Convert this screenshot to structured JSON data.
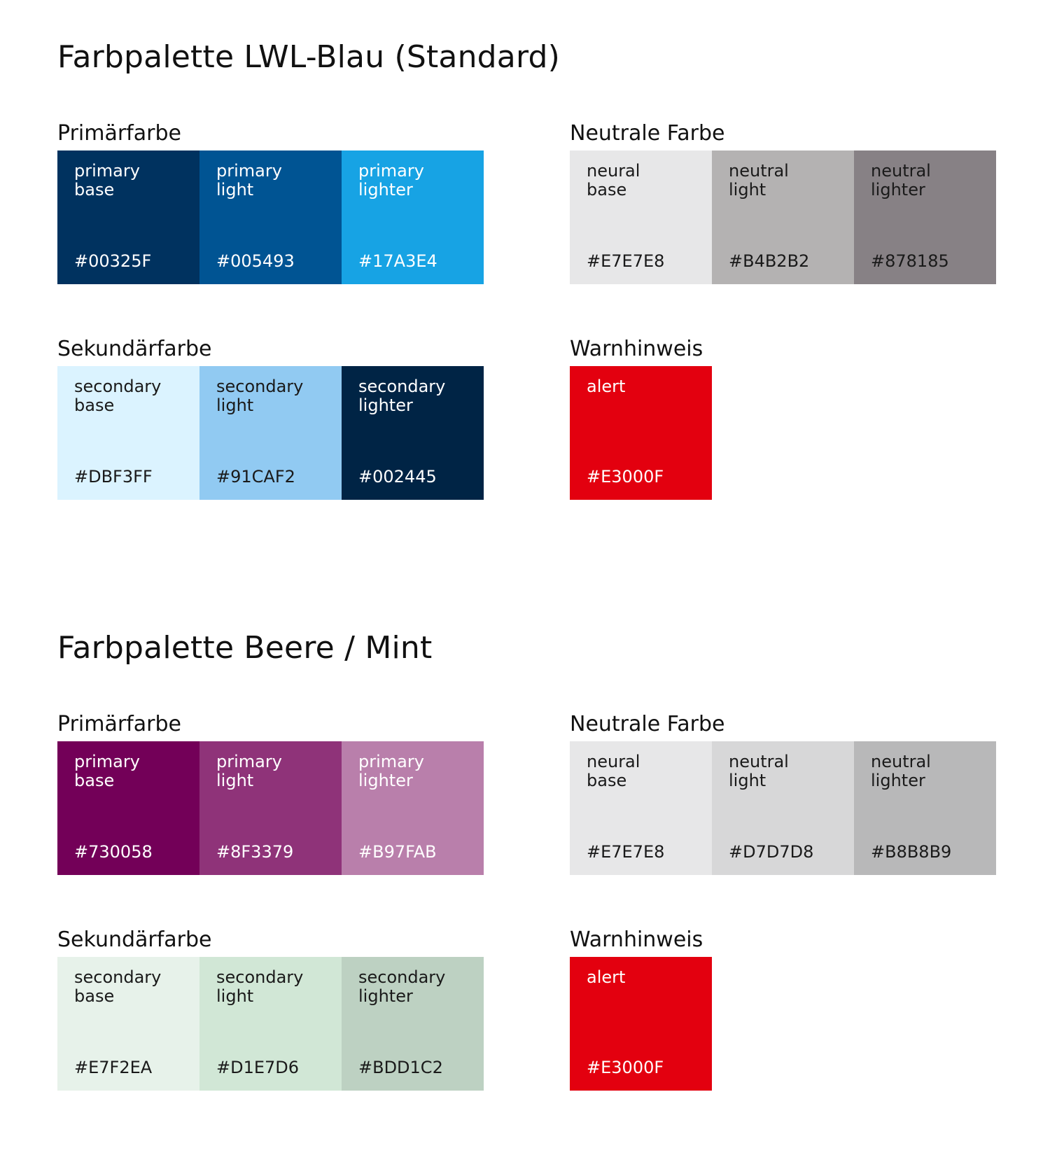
{
  "palettes": [
    {
      "title": "Farbpalette LWL-Blau (Standard)",
      "groups": [
        {
          "title": "Primärfarbe",
          "swatches": [
            {
              "name": "primary\nbase",
              "hex": "#00325F",
              "color": "#00325F",
              "text_color": "#FFFFFF"
            },
            {
              "name": "primary\nlight",
              "hex": "#005493",
              "color": "#005493",
              "text_color": "#FFFFFF"
            },
            {
              "name": "primary\nlighter",
              "hex": "#17A3E4",
              "color": "#17A3E4",
              "text_color": "#FFFFFF"
            }
          ]
        },
        {
          "title": "Neutrale Farbe",
          "swatches": [
            {
              "name": "neural\nbase",
              "hex": "#E7E7E8",
              "color": "#E7E7E8",
              "text_color": "#1A1A1A"
            },
            {
              "name": "neutral\nlight",
              "hex": "#B4B2B2",
              "color": "#B4B2B2",
              "text_color": "#1A1A1A"
            },
            {
              "name": "neutral\nlighter",
              "hex": "#878185",
              "color": "#878185",
              "text_color": "#1A1A1A"
            }
          ]
        },
        {
          "title": "Sekundärfarbe",
          "swatches": [
            {
              "name": "secondary\nbase",
              "hex": "#DBF3FF",
              "color": "#DBF3FF",
              "text_color": "#1A1A1A"
            },
            {
              "name": "secondary\nlight",
              "hex": "#91CAF2",
              "color": "#91CAF2",
              "text_color": "#1A1A1A"
            },
            {
              "name": "secondary\nlighter",
              "hex": "#002445",
              "color": "#002445",
              "text_color": "#FFFFFF"
            }
          ]
        },
        {
          "title": "Warnhinweis",
          "swatches": [
            {
              "name": "alert",
              "hex": "#E3000F",
              "color": "#E3000F",
              "text_color": "#FFFFFF"
            }
          ]
        }
      ]
    },
    {
      "title": "Farbpalette Beere / Mint",
      "groups": [
        {
          "title": "Primärfarbe",
          "swatches": [
            {
              "name": "primary\nbase",
              "hex": "#730058",
              "color": "#730058",
              "text_color": "#FFFFFF"
            },
            {
              "name": "primary\nlight",
              "hex": "#8F3379",
              "color": "#8F3379",
              "text_color": "#FFFFFF"
            },
            {
              "name": "primary\nlighter",
              "hex": "#B97FAB",
              "color": "#B97FAB",
              "text_color": "#FFFFFF"
            }
          ]
        },
        {
          "title": "Neutrale Farbe",
          "swatches": [
            {
              "name": "neural\nbase",
              "hex": "#E7E7E8",
              "color": "#E7E7E8",
              "text_color": "#1A1A1A"
            },
            {
              "name": "neutral\nlight",
              "hex": "#D7D7D8",
              "color": "#D7D7D8",
              "text_color": "#1A1A1A"
            },
            {
              "name": "neutral\nlighter",
              "hex": "#B8B8B9",
              "color": "#B8B8B9",
              "text_color": "#1A1A1A"
            }
          ]
        },
        {
          "title": "Sekundärfarbe",
          "swatches": [
            {
              "name": "secondary\nbase",
              "hex": "#E7F2EA",
              "color": "#E7F2EA",
              "text_color": "#1A1A1A"
            },
            {
              "name": "secondary\nlight",
              "hex": "#D1E7D6",
              "color": "#D1E7D6",
              "text_color": "#1A1A1A"
            },
            {
              "name": "secondary\nlighter",
              "hex": "#BDD1C2",
              "color": "#BDD1C2",
              "text_color": "#1A1A1A"
            }
          ]
        },
        {
          "title": "Warnhinweis",
          "swatches": [
            {
              "name": "alert",
              "hex": "#E3000F",
              "color": "#E3000F",
              "text_color": "#FFFFFF"
            }
          ]
        }
      ]
    }
  ]
}
